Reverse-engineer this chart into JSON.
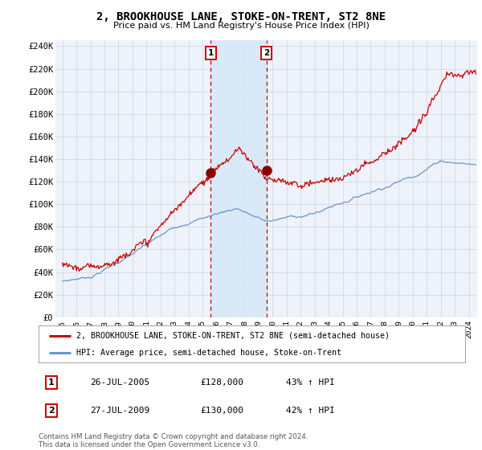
{
  "title": "2, BROOKHOUSE LANE, STOKE-ON-TRENT, ST2 8NE",
  "subtitle": "Price paid vs. HM Land Registry's House Price Index (HPI)",
  "ylabel_ticks": [
    "£0",
    "£20K",
    "£40K",
    "£60K",
    "£80K",
    "£100K",
    "£120K",
    "£140K",
    "£160K",
    "£180K",
    "£200K",
    "£220K",
    "£240K"
  ],
  "ytick_values": [
    0,
    20000,
    40000,
    60000,
    80000,
    100000,
    120000,
    140000,
    160000,
    180000,
    200000,
    220000,
    240000
  ],
  "ylim": [
    0,
    245000
  ],
  "xlim_start": 1994.5,
  "xlim_end": 2024.6,
  "background_color": "#ffffff",
  "plot_bg_color": "#eef2fb",
  "grid_color": "#d8dce8",
  "legend_entry1": "2, BROOKHOUSE LANE, STOKE-ON-TRENT, ST2 8NE (semi-detached house)",
  "legend_entry2": "HPI: Average price, semi-detached house, Stoke-on-Trent",
  "sale1_date": "26-JUL-2005",
  "sale1_price": "£128,000",
  "sale1_hpi": "43% ↑ HPI",
  "sale1_label": "1",
  "sale1_year": 2005.57,
  "sale1_value": 128000,
  "sale2_date": "27-JUL-2009",
  "sale2_price": "£130,000",
  "sale2_hpi": "42% ↑ HPI",
  "sale2_label": "2",
  "sale2_year": 2009.57,
  "sale2_value": 130000,
  "line_color_property": "#cc0000",
  "line_color_hpi": "#6699cc",
  "marker_color_sale": "#880000",
  "vline_color": "#cc0000",
  "shade_color": "#d6e8f8",
  "footer": "Contains HM Land Registry data © Crown copyright and database right 2024.\nThis data is licensed under the Open Government Licence v3.0."
}
